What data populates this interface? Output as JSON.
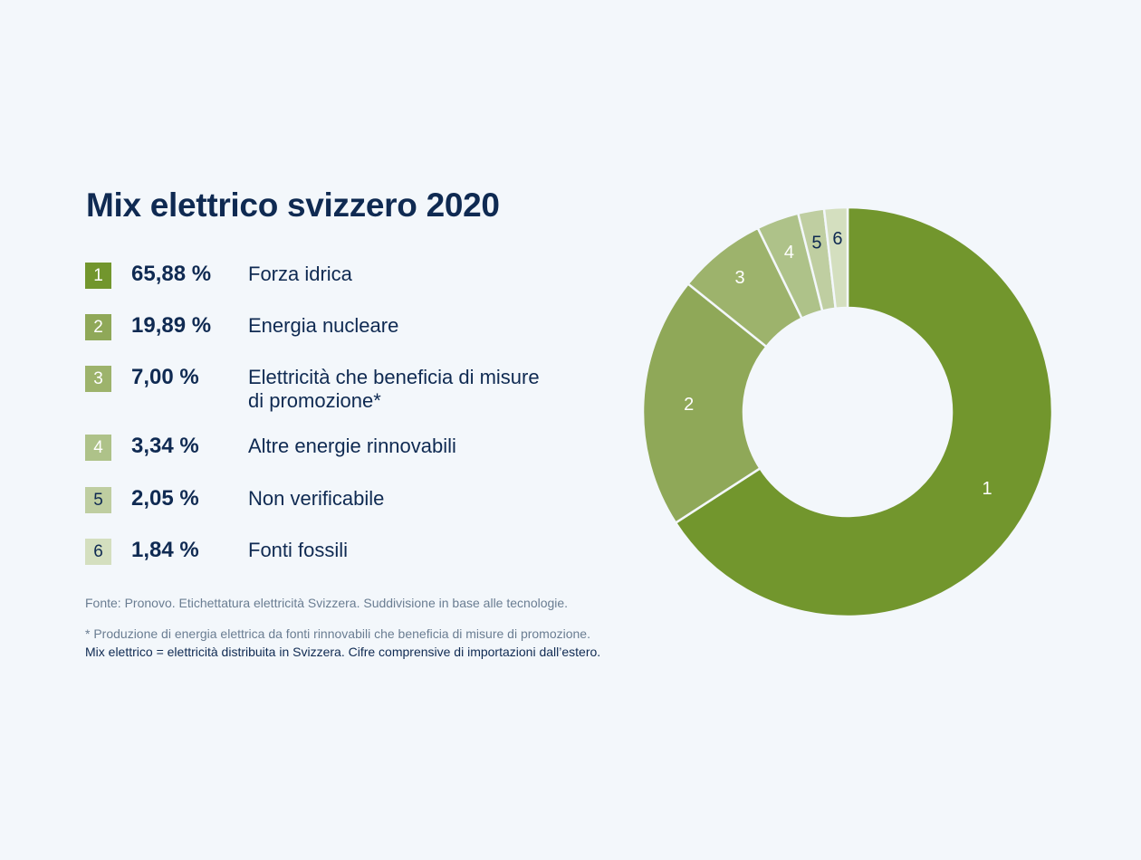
{
  "title": "Mix elettrico svizzero 2020",
  "legend": [
    {
      "num": "1",
      "pct": "65,88 %",
      "label": "Forza idrica",
      "color": "#72962d"
    },
    {
      "num": "2",
      "pct": "19,89 %",
      "label": "Energia nucleare",
      "color": "#8fa858"
    },
    {
      "num": "3",
      "pct": "7,00 %",
      "label": "Elettricità che beneficia di misure di promozione*",
      "color": "#9db36c"
    },
    {
      "num": "4",
      "pct": "3,34 %",
      "label": "Altre energie rinnovabili",
      "color": "#aec289"
    },
    {
      "num": "5",
      "pct": "2,05 %",
      "label": "Non verificabile",
      "color": "#bfcea1"
    },
    {
      "num": "6",
      "pct": "1,84 %",
      "label": "Fonti fossili",
      "color": "#d4dfbf"
    }
  ],
  "notes": {
    "source": "Fonte: Pronovo. Etichettatura elettricità Svizzera. Suddivisione in base alle tecnologie.",
    "footnote": "* Produzione di energia elettrica da fonti rinnovabili che beneficia di misure di promozione.",
    "definition": "Mix elettrico = elettricità distribuita in Svizzera. Cifre comprensive di importazioni dall’estero."
  },
  "chart_data": {
    "type": "pie",
    "subtype": "donut",
    "title": "Mix elettrico svizzero 2020",
    "categories": [
      "1",
      "2",
      "3",
      "4",
      "5",
      "6"
    ],
    "series_labels": [
      "Forza idrica",
      "Energia nucleare",
      "Elettricità che beneficia di misure di promozione*",
      "Altre energie rinnovabili",
      "Non verificabile",
      "Fonti fossili"
    ],
    "values": [
      65.88,
      19.89,
      7.0,
      3.34,
      2.05,
      1.84
    ],
    "unit": "%",
    "start": "top, clockwise"
  }
}
